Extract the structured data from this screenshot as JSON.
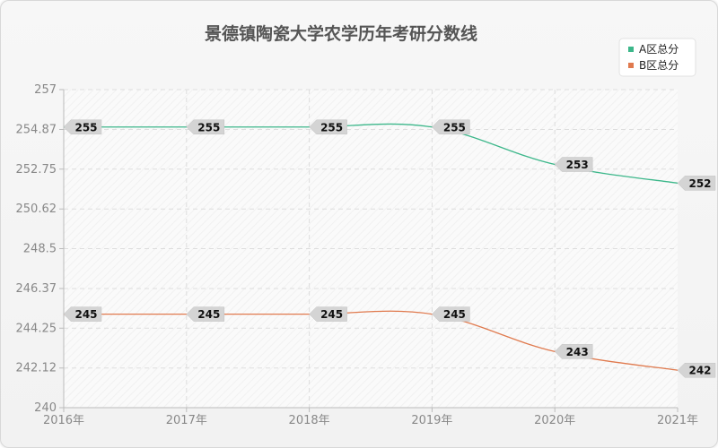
{
  "chart_data": {
    "type": "line",
    "title": "景德镇陶瓷大学农学历年考研分数线",
    "xlabel": "",
    "ylabel": "",
    "categories": [
      "2016年",
      "2017年",
      "2018年",
      "2019年",
      "2020年",
      "2021年"
    ],
    "y_ticks": [
      "240",
      "242.12",
      "244.25",
      "246.37",
      "248.5",
      "250.62",
      "252.75",
      "254.87",
      "257"
    ],
    "ylim": [
      240,
      257
    ],
    "grid": true,
    "legend_position": "top-right",
    "series": [
      {
        "name": "A区总分",
        "values": [
          255,
          255,
          255,
          255,
          253,
          252
        ],
        "color": "#3cb78a"
      },
      {
        "name": "B区总分",
        "values": [
          245,
          245,
          245,
          245,
          243,
          242
        ],
        "color": "#e07a4e"
      }
    ]
  }
}
